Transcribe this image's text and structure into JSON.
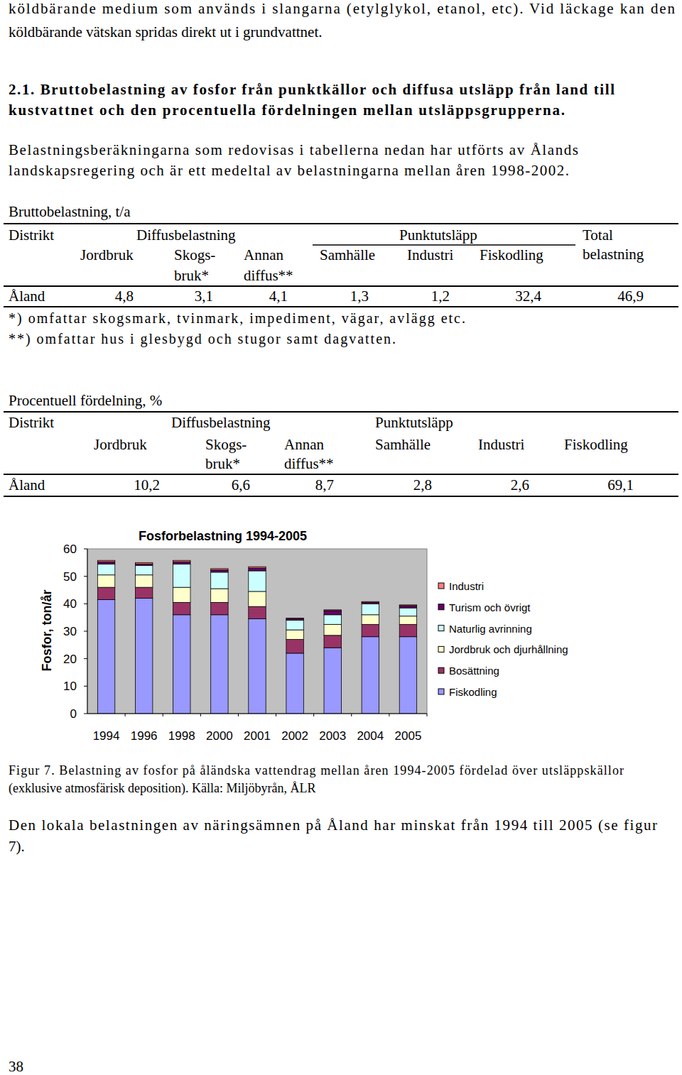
{
  "intro": {
    "lines": [
      "köldbärande medium som används i slangarna (etylglykol, etanol, etc). Vid läckage kan den",
      "köldbärande vätskan spridas direkt ut i grundvattnet."
    ]
  },
  "section": {
    "heading": [
      "2.1. Bruttobelastning av fosfor från punktkällor och diffusa utsläpp från land till",
      "kustvattnet och den procentuella fördelningen mellan utsläppsgrupperna."
    ],
    "paragraph": [
      "Belastningsberäkningarna som redovisas i tabellerna nedan har utförts av Ålands",
      "landskapsregering och är ett medeltal av belastningarna mellan åren 1998-2002."
    ]
  },
  "table1": {
    "caption": "Bruttobelastning, t/a",
    "header": {
      "district": "Distrikt",
      "groups": [
        "Diffusbelastning",
        "Punktutsläpp"
      ],
      "total": [
        "Total",
        "belastning"
      ],
      "columns": [
        [
          "Jordbruk"
        ],
        [
          "Skogs-",
          "bruk*"
        ],
        [
          "Annan",
          "diffus**"
        ],
        [
          "Samhälle"
        ],
        [
          "Industri"
        ],
        [
          "Fiskodling"
        ]
      ]
    },
    "rows": [
      [
        "Åland",
        "4,8",
        "3,1",
        "4,1",
        "1,3",
        "1,2",
        "32,4",
        "46,9"
      ]
    ],
    "notes": [
      "*) omfattar skogsmark, tvinmark, impediment, vägar, avlägg etc.",
      "**) omfattar hus i glesbygd och stugor samt dagvatten."
    ]
  },
  "table2": {
    "caption": "Procentuell fördelning, %",
    "header": {
      "district": "Distrikt",
      "groups": [
        "Diffusbelastning",
        "Punktutsläpp"
      ],
      "columns": [
        [
          "Jordbruk"
        ],
        [
          "Skogs-",
          "bruk*"
        ],
        [
          "Annan",
          "diffus**"
        ],
        [
          "Samhälle"
        ],
        [
          "Industri"
        ],
        [
          "Fiskodling"
        ]
      ]
    },
    "rows": [
      [
        "Åland",
        "10,2",
        "6,6",
        "8,7",
        "2,8",
        "2,6",
        "69,1"
      ]
    ]
  },
  "chart_data": {
    "type": "bar",
    "stacked": true,
    "title": "Fosforbelastning 1994-2005",
    "y_label": "Fosfor, ton/år",
    "categories": [
      "1994",
      "1996",
      "1998",
      "2000",
      "2001",
      "2002",
      "2003",
      "2004",
      "2005"
    ],
    "series": [
      {
        "name": "Fiskodling",
        "color": "#9999ff",
        "values": [
          41.5,
          42,
          36,
          36,
          34.5,
          22,
          24,
          28,
          28
        ]
      },
      {
        "name": "Bosättning",
        "color": "#993366",
        "values": [
          4.5,
          4,
          4.5,
          4.5,
          4.5,
          5,
          4.5,
          4.5,
          4.5
        ]
      },
      {
        "name": "Jordbruk och djurhållning",
        "color": "#ffffcc",
        "values": [
          4.5,
          4.5,
          5.5,
          5,
          5.5,
          3.5,
          4,
          3.5,
          3
        ]
      },
      {
        "name": "Naturlig avrinning",
        "color": "#ccffff",
        "values": [
          4,
          3.5,
          8.5,
          6,
          7.5,
          3.5,
          3.5,
          4,
          3
        ]
      },
      {
        "name": "Turism och övrigt",
        "color": "#660066",
        "values": [
          0.8,
          0.5,
          0.8,
          0.8,
          1,
          0.5,
          1.5,
          0.5,
          0.8
        ]
      },
      {
        "name": "Industri",
        "color": "#ff8080",
        "values": [
          0.5,
          0.5,
          0.5,
          0.5,
          0.5,
          0.3,
          0.3,
          0.3,
          0.3
        ]
      }
    ],
    "ylim": [
      0,
      60
    ],
    "yticks": [
      0,
      10,
      20,
      30,
      40,
      50,
      60
    ],
    "grid": false,
    "legend": "right"
  },
  "figure_caption": [
    "Figur 7. Belastning av fosfor på åländska vattendrag mellan åren 1994-2005 fördelad över utsläppskällor",
    "(exklusive atmosfärisk deposition). Källa: Miljöbyrån, ÅLR"
  ],
  "conclusion": [
    "Den lokala belastningen av näringsämnen på Åland har minskat från 1994 till 2005 (se figur",
    "7)."
  ],
  "page_number": "38"
}
